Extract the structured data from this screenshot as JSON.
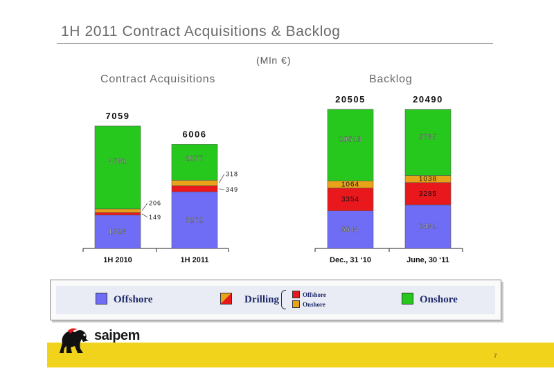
{
  "header": {
    "title": "1H 2011 Contract Acquisitions & Backlog",
    "unit": "(Mln €)"
  },
  "colors": {
    "offshore": "#6f6df5",
    "drilling_offshore": "#e8181d",
    "drilling_onshore": "#e8a318",
    "onshore": "#26c81e"
  },
  "chart_data": [
    {
      "type": "bar",
      "stacked": true,
      "title": "Contract Acquisitions",
      "categories": [
        "1H 2010",
        "1H 2011"
      ],
      "series": [
        {
          "name": "Offshore",
          "values": [
            1923,
            3262
          ]
        },
        {
          "name": "Drilling Offshore",
          "values": [
            149,
            349
          ]
        },
        {
          "name": "Drilling Onshore",
          "values": [
            206,
            318
          ]
        },
        {
          "name": "Onshore",
          "values": [
            4781,
            2077
          ]
        }
      ],
      "totals": [
        7059,
        6006
      ],
      "ylim": [
        0,
        8000
      ],
      "grid": false
    },
    {
      "type": "bar",
      "stacked": true,
      "title": "Backlog",
      "categories": [
        "Dec., 31 ‘10",
        "June, 30 ‘11"
      ],
      "series": [
        {
          "name": "Offshore",
          "values": [
            5544,
            6432
          ]
        },
        {
          "name": "Drilling Offshore",
          "values": [
            3354,
            3285
          ]
        },
        {
          "name": "Drilling Onshore",
          "values": [
            1064,
            1038
          ]
        },
        {
          "name": "Onshore",
          "values": [
            10543,
            9735
          ]
        }
      ],
      "totals": [
        20505,
        20490
      ],
      "ylim": [
        0,
        23000
      ],
      "grid": false
    }
  ],
  "legend": {
    "offshore": "Offshore",
    "drilling": "Drilling",
    "drilling_offshore": "Offshore",
    "drilling_onshore": "Onshore",
    "onshore": "Onshore"
  },
  "footer": {
    "brand": "saipem",
    "page_number": "7"
  }
}
